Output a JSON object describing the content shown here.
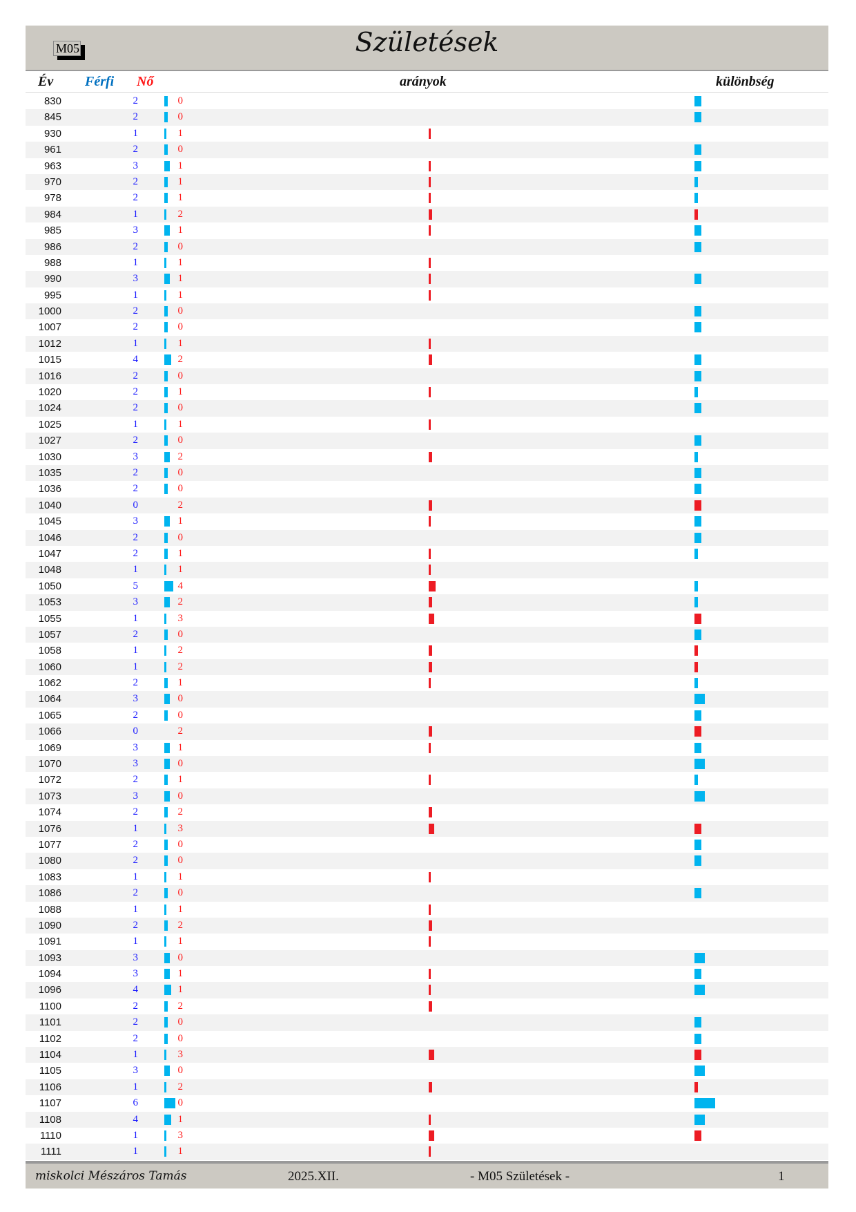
{
  "header": {
    "code": "M05",
    "title": "Születések"
  },
  "columns": {
    "year": "Év",
    "male": "Férfi",
    "female": "Nő",
    "ratios": "arányok",
    "difference": "különbség"
  },
  "colors": {
    "male": "#00b4ef",
    "female": "#ed1c24",
    "row_alt": "#f2f2f2",
    "band": "#ccc9c2"
  },
  "rows": [
    [
      "830",
      2,
      0
    ],
    [
      "845",
      2,
      0
    ],
    [
      "930",
      1,
      1
    ],
    [
      "961",
      2,
      0
    ],
    [
      "963",
      3,
      1
    ],
    [
      "970",
      2,
      1
    ],
    [
      "978",
      2,
      1
    ],
    [
      "984",
      1,
      2
    ],
    [
      "985",
      3,
      1
    ],
    [
      "986",
      2,
      0
    ],
    [
      "988",
      1,
      1
    ],
    [
      "990",
      3,
      1
    ],
    [
      "995",
      1,
      1
    ],
    [
      "1000",
      2,
      0
    ],
    [
      "1007",
      2,
      0
    ],
    [
      "1012",
      1,
      1
    ],
    [
      "1015",
      4,
      2
    ],
    [
      "1016",
      2,
      0
    ],
    [
      "1020",
      2,
      1
    ],
    [
      "1024",
      2,
      0
    ],
    [
      "1025",
      1,
      1
    ],
    [
      "1027",
      2,
      0
    ],
    [
      "1030",
      3,
      2
    ],
    [
      "1035",
      2,
      0
    ],
    [
      "1036",
      2,
      0
    ],
    [
      "1040",
      0,
      2
    ],
    [
      "1045",
      3,
      1
    ],
    [
      "1046",
      2,
      0
    ],
    [
      "1047",
      2,
      1
    ],
    [
      "1048",
      1,
      1
    ],
    [
      "1050",
      5,
      4
    ],
    [
      "1053",
      3,
      2
    ],
    [
      "1055",
      1,
      3
    ],
    [
      "1057",
      2,
      0
    ],
    [
      "1058",
      1,
      2
    ],
    [
      "1060",
      1,
      2
    ],
    [
      "1062",
      2,
      1
    ],
    [
      "1064",
      3,
      0
    ],
    [
      "1065",
      2,
      0
    ],
    [
      "1066",
      0,
      2
    ],
    [
      "1069",
      3,
      1
    ],
    [
      "1070",
      3,
      0
    ],
    [
      "1072",
      2,
      1
    ],
    [
      "1073",
      3,
      0
    ],
    [
      "1074",
      2,
      2
    ],
    [
      "1076",
      1,
      3
    ],
    [
      "1077",
      2,
      0
    ],
    [
      "1080",
      2,
      0
    ],
    [
      "1083",
      1,
      1
    ],
    [
      "1086",
      2,
      0
    ],
    [
      "1088",
      1,
      1
    ],
    [
      "1090",
      2,
      2
    ],
    [
      "1091",
      1,
      1
    ],
    [
      "1093",
      3,
      0
    ],
    [
      "1094",
      3,
      1
    ],
    [
      "1096",
      4,
      1
    ],
    [
      "1100",
      2,
      2
    ],
    [
      "1101",
      2,
      0
    ],
    [
      "1102",
      2,
      0
    ],
    [
      "1104",
      1,
      3
    ],
    [
      "1105",
      3,
      0
    ],
    [
      "1106",
      1,
      2
    ],
    [
      "1107",
      6,
      0
    ],
    [
      "1108",
      4,
      1
    ],
    [
      "1110",
      1,
      3
    ],
    [
      "1111",
      1,
      1
    ]
  ],
  "footer": {
    "author": "miskolci Mészáros Tamás",
    "date": "2025.XII.",
    "doc": "- M05  Születések -",
    "page": "1"
  }
}
